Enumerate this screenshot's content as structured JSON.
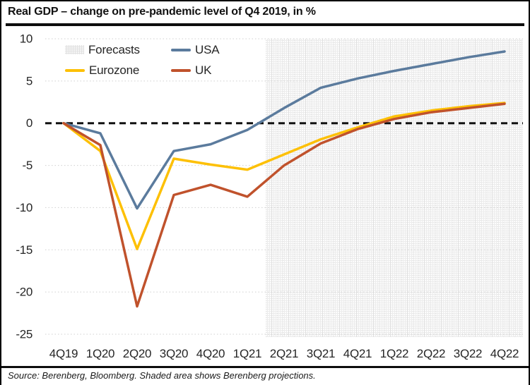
{
  "title": "Real GDP – change on pre-pandemic level of Q4 2019, in %",
  "source": "Source: Berenberg, Bloomberg. Shaded area shows Berenberg projections.",
  "legend": {
    "forecasts": "Forecasts",
    "usa": "USA",
    "eurozone": "Eurozone",
    "uk": "UK"
  },
  "colors": {
    "usa": "#5b7b9d",
    "eurozone": "#fdc005",
    "uk": "#c0522c",
    "zero_line": "#111111",
    "gridline": "#d0d0d0",
    "axis_text": "#262626"
  },
  "chart_data": {
    "type": "line",
    "title": "Real GDP – change on pre-pandemic level of Q4 2019, in %",
    "xlabel": "",
    "ylabel": "change on pre-pandemic level of Q4 2019, in %",
    "categories": [
      "4Q19",
      "1Q20",
      "2Q20",
      "3Q20",
      "4Q20",
      "1Q21",
      "2Q21",
      "3Q21",
      "4Q21",
      "1Q22",
      "2Q22",
      "3Q22",
      "4Q22"
    ],
    "series": [
      {
        "name": "USA",
        "color": "#5b7b9d",
        "values": [
          0,
          -1.2,
          -10.1,
          -3.3,
          -2.5,
          -0.8,
          1.8,
          4.2,
          5.3,
          6.2,
          7.0,
          7.8,
          8.5
        ]
      },
      {
        "name": "Eurozone",
        "color": "#fdc005",
        "values": [
          0,
          -3.3,
          -14.9,
          -4.2,
          -4.9,
          -5.5,
          -3.7,
          -1.9,
          -0.5,
          0.8,
          1.5,
          2.0,
          2.4
        ]
      },
      {
        "name": "UK",
        "color": "#c0522c",
        "values": [
          0,
          -2.6,
          -21.7,
          -8.5,
          -7.3,
          -8.7,
          -5.0,
          -2.4,
          -0.7,
          0.5,
          1.3,
          1.8,
          2.3
        ]
      }
    ],
    "ylim": [
      -25,
      10
    ],
    "yticks": [
      10,
      5,
      0,
      -5,
      -10,
      -15,
      -20,
      -25
    ],
    "zero_line_style": "dashed-black",
    "grid": "dotted-horizontal",
    "legend_position": "top-left-inside",
    "forecast_region": {
      "label": "Forecasts",
      "start_category": "2Q21",
      "end_category": "4Q22"
    }
  }
}
